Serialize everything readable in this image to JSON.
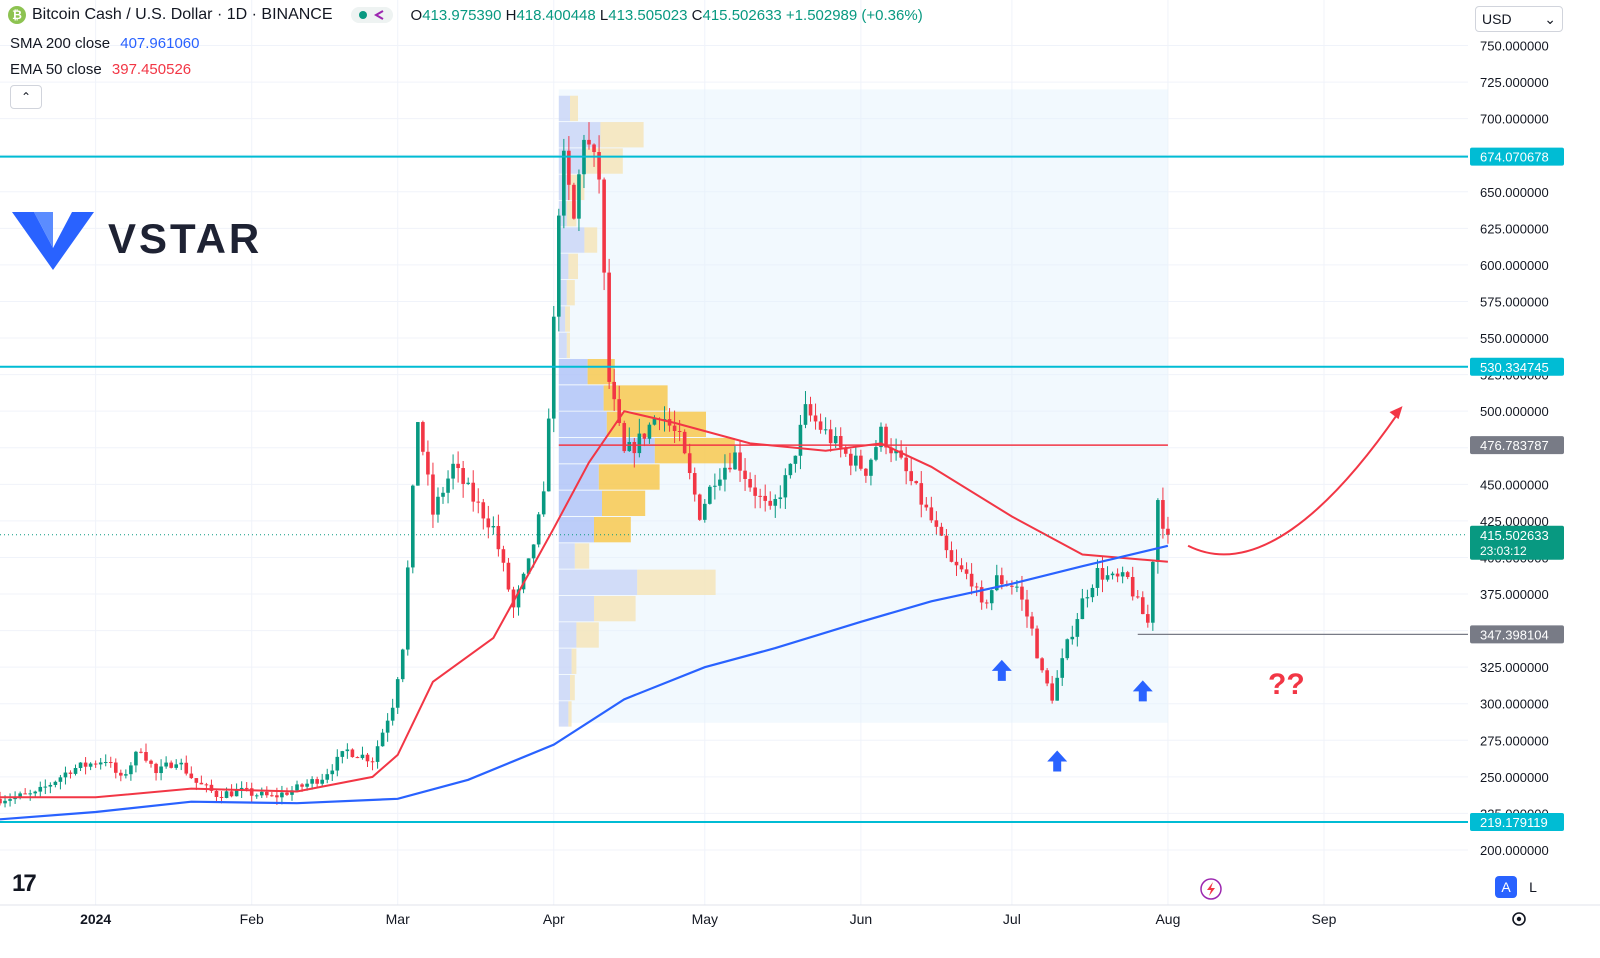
{
  "header": {
    "symbol_title": "Bitcoin Cash / U.S. Dollar · 1D · BINANCE",
    "coin_glyph": "₿",
    "open_label": "O",
    "open": "413.975390",
    "high_label": "H",
    "high": "418.400448",
    "low_label": "L",
    "low": "413.505023",
    "close_label": "C",
    "close": "415.502633",
    "change": "+1.502989 (+0.36%)"
  },
  "indicators": [
    {
      "label": "SMA 200 close",
      "value": "407.961060",
      "color": "#2962ff"
    },
    {
      "label": "EMA 50 close",
      "value": "397.450526",
      "color": "#f23645"
    }
  ],
  "collapse_glyph": "⌃",
  "currency": {
    "value": "USD",
    "chevron": "⌄"
  },
  "watermark": {
    "text": "VSTAR"
  },
  "tradingview_logo": "17",
  "scale_buttons": {
    "auto": "A",
    "log": "L"
  },
  "annotation_text": "??",
  "chart_data": {
    "type": "candlestick",
    "x_start": "2023-12-13",
    "x_end": "2024-09-30",
    "x_tick_labels": [
      {
        "label": "2024",
        "date": "2024-01-01",
        "bold": true
      },
      {
        "label": "Feb",
        "date": "2024-02-01"
      },
      {
        "label": "Mar",
        "date": "2024-03-01"
      },
      {
        "label": "Apr",
        "date": "2024-04-01"
      },
      {
        "label": "May",
        "date": "2024-05-01"
      },
      {
        "label": "Jun",
        "date": "2024-06-01"
      },
      {
        "label": "Jul",
        "date": "2024-07-01"
      },
      {
        "label": "Aug",
        "date": "2024-08-01"
      },
      {
        "label": "Sep",
        "date": "2024-09-01"
      }
    ],
    "y_range": [
      190,
      755
    ],
    "y_ticks": [
      200,
      225,
      250,
      275,
      300,
      325,
      350,
      375,
      400,
      425,
      450,
      475,
      500,
      525,
      550,
      575,
      600,
      625,
      650,
      675,
      700,
      725,
      750
    ],
    "y_tick_labels": [
      "200.000000",
      "225.000000",
      "250.000000",
      "275.000000",
      "300.000000",
      "325.000000",
      "350.000000",
      "375.000000",
      "400.000000",
      "425.000000",
      "450.000000",
      "475.000000",
      "500.000000",
      "525.000000",
      "550.000000",
      "575.000000",
      "600.000000",
      "625.000000",
      "650.000000",
      "675.000000",
      "700.000000",
      "725.000000",
      "750.000000"
    ],
    "up_color": "#089981",
    "down_color": "#f23645",
    "close_path": [
      [
        "2023-12-13",
        235
      ],
      [
        "2023-12-20",
        238
      ],
      [
        "2023-12-27",
        255
      ],
      [
        "2024-01-03",
        262
      ],
      [
        "2024-01-06",
        248
      ],
      [
        "2024-01-10",
        270
      ],
      [
        "2024-01-13",
        252
      ],
      [
        "2024-01-17",
        262
      ],
      [
        "2024-01-21",
        246
      ],
      [
        "2024-01-25",
        238
      ],
      [
        "2024-01-30",
        240
      ],
      [
        "2024-02-05",
        236
      ],
      [
        "2024-02-10",
        242
      ],
      [
        "2024-02-15",
        250
      ],
      [
        "2024-02-20",
        268
      ],
      [
        "2024-02-25",
        262
      ],
      [
        "2024-02-29",
        300
      ],
      [
        "2024-03-02",
        340
      ],
      [
        "2024-03-05",
        495
      ],
      [
        "2024-03-08",
        430
      ],
      [
        "2024-03-12",
        462
      ],
      [
        "2024-03-16",
        440
      ],
      [
        "2024-03-20",
        420
      ],
      [
        "2024-03-24",
        365
      ],
      [
        "2024-03-27",
        395
      ],
      [
        "2024-03-30",
        440
      ],
      [
        "2024-04-01",
        560
      ],
      [
        "2024-04-02",
        640
      ],
      [
        "2024-04-03",
        670
      ],
      [
        "2024-04-05",
        630
      ],
      [
        "2024-04-07",
        690
      ],
      [
        "2024-04-10",
        660
      ],
      [
        "2024-04-12",
        520
      ],
      [
        "2024-04-15",
        470
      ],
      [
        "2024-04-18",
        480
      ],
      [
        "2024-04-22",
        500
      ],
      [
        "2024-04-26",
        480
      ],
      [
        "2024-04-30",
        430
      ],
      [
        "2024-05-03",
        455
      ],
      [
        "2024-05-07",
        470
      ],
      [
        "2024-05-10",
        450
      ],
      [
        "2024-05-14",
        430
      ],
      [
        "2024-05-18",
        460
      ],
      [
        "2024-05-21",
        500
      ],
      [
        "2024-05-25",
        485
      ],
      [
        "2024-05-29",
        470
      ],
      [
        "2024-06-02",
        460
      ],
      [
        "2024-06-05",
        485
      ],
      [
        "2024-06-08",
        470
      ],
      [
        "2024-06-12",
        445
      ],
      [
        "2024-06-15",
        425
      ],
      [
        "2024-06-19",
        395
      ],
      [
        "2024-06-23",
        385
      ],
      [
        "2024-06-25",
        365
      ],
      [
        "2024-06-28",
        385
      ],
      [
        "2024-07-02",
        380
      ],
      [
        "2024-07-05",
        350
      ],
      [
        "2024-07-07",
        320
      ],
      [
        "2024-07-09",
        305
      ],
      [
        "2024-07-12",
        340
      ],
      [
        "2024-07-15",
        370
      ],
      [
        "2024-07-18",
        390
      ],
      [
        "2024-07-21",
        385
      ],
      [
        "2024-07-24",
        385
      ],
      [
        "2024-07-26",
        368
      ],
      [
        "2024-07-28",
        355
      ],
      [
        "2024-07-29",
        400
      ],
      [
        "2024-07-30",
        440
      ],
      [
        "2024-07-31",
        425
      ],
      [
        "2024-08-01",
        415.5
      ]
    ],
    "sma200": [
      [
        "2023-12-13",
        221
      ],
      [
        "2024-01-01",
        226
      ],
      [
        "2024-01-20",
        233
      ],
      [
        "2024-02-10",
        232
      ],
      [
        "2024-03-01",
        235
      ],
      [
        "2024-03-15",
        248
      ],
      [
        "2024-04-01",
        272
      ],
      [
        "2024-04-15",
        303
      ],
      [
        "2024-05-01",
        325
      ],
      [
        "2024-05-15",
        338
      ],
      [
        "2024-06-01",
        356
      ],
      [
        "2024-06-15",
        370
      ],
      [
        "2024-07-01",
        382
      ],
      [
        "2024-07-15",
        394
      ],
      [
        "2024-08-01",
        408
      ]
    ],
    "ema50": [
      [
        "2023-12-13",
        236
      ],
      [
        "2024-01-01",
        236
      ],
      [
        "2024-01-20",
        242
      ],
      [
        "2024-02-10",
        240
      ],
      [
        "2024-02-25",
        250
      ],
      [
        "2024-03-01",
        265
      ],
      [
        "2024-03-08",
        315
      ],
      [
        "2024-03-20",
        345
      ],
      [
        "2024-04-01",
        420
      ],
      [
        "2024-04-08",
        465
      ],
      [
        "2024-04-15",
        500
      ],
      [
        "2024-04-25",
        492
      ],
      [
        "2024-05-10",
        478
      ],
      [
        "2024-05-25",
        473
      ],
      [
        "2024-06-05",
        478
      ],
      [
        "2024-06-15",
        462
      ],
      [
        "2024-07-01",
        428
      ],
      [
        "2024-07-15",
        402
      ],
      [
        "2024-08-01",
        397
      ]
    ],
    "volume_profile": {
      "x_start": "2024-04-02",
      "x_end": "2024-08-01",
      "price_low": 287,
      "price_high": 720,
      "va_low": 412,
      "va_high": 528,
      "bins": [
        {
          "price": 293,
          "up": 6,
          "down": 2
        },
        {
          "price": 311,
          "up": 7,
          "down": 3
        },
        {
          "price": 329,
          "up": 8,
          "down": 3
        },
        {
          "price": 347,
          "up": 11,
          "down": 14
        },
        {
          "price": 365,
          "up": 22,
          "down": 26
        },
        {
          "price": 383,
          "up": 49,
          "down": 49
        },
        {
          "price": 401,
          "up": 10,
          "down": 9
        },
        {
          "price": 419,
          "up": 22,
          "down": 23
        },
        {
          "price": 437,
          "up": 27,
          "down": 27
        },
        {
          "price": 455,
          "up": 25,
          "down": 38
        },
        {
          "price": 473,
          "up": 60,
          "down": 50
        },
        {
          "price": 491,
          "up": 30,
          "down": 62
        },
        {
          "price": 509,
          "up": 28,
          "down": 40
        },
        {
          "price": 527,
          "up": 18,
          "down": 17
        },
        {
          "price": 545,
          "up": 5,
          "down": 2
        },
        {
          "price": 563,
          "up": 4,
          "down": 3
        },
        {
          "price": 581,
          "up": 5,
          "down": 5
        },
        {
          "price": 599,
          "up": 6,
          "down": 6
        },
        {
          "price": 617,
          "up": 16,
          "down": 8
        },
        {
          "price": 635,
          "up": 5,
          "down": 6
        },
        {
          "price": 653,
          "up": 6,
          "down": 10
        },
        {
          "price": 671,
          "up": 17,
          "down": 23
        },
        {
          "price": 689,
          "up": 26,
          "down": 27
        },
        {
          "price": 707,
          "up": 7,
          "down": 5
        }
      ]
    },
    "horizontal_levels": [
      {
        "price": 674.070678,
        "label": "674.070678",
        "color": "#00bcd4",
        "type": "line"
      },
      {
        "price": 530.334745,
        "label": "530.334745",
        "color": "#00bcd4",
        "type": "line"
      },
      {
        "price": 219.179119,
        "label": "219.179119",
        "color": "#00bcd4",
        "type": "line"
      }
    ],
    "poc_level": {
      "price": 476.783787,
      "label": "476.783787",
      "color": "#f23645",
      "x_start": "2024-04-02",
      "x_end": "2024-08-01"
    },
    "support_level": {
      "price": 347.398104,
      "label": "347.398104",
      "color": "#131722",
      "x_start": "2024-07-26"
    },
    "last_price": {
      "price": 415.502633,
      "label": "415.502633",
      "countdown": "23:03:12",
      "color": "#089981"
    },
    "arrows": [
      {
        "date": "2024-06-29",
        "price": 330,
        "color": "#2962ff"
      },
      {
        "date": "2024-07-10",
        "price": 268,
        "color": "#2962ff"
      },
      {
        "date": "2024-07-27",
        "price": 316,
        "color": "#2962ff"
      }
    ],
    "projection_curve": {
      "color": "#f23645",
      "points": [
        [
          "2024-08-05",
          408
        ],
        [
          "2024-08-18",
          395
        ],
        [
          "2024-09-02",
          430
        ],
        [
          "2024-09-16",
          500
        ]
      ]
    }
  }
}
